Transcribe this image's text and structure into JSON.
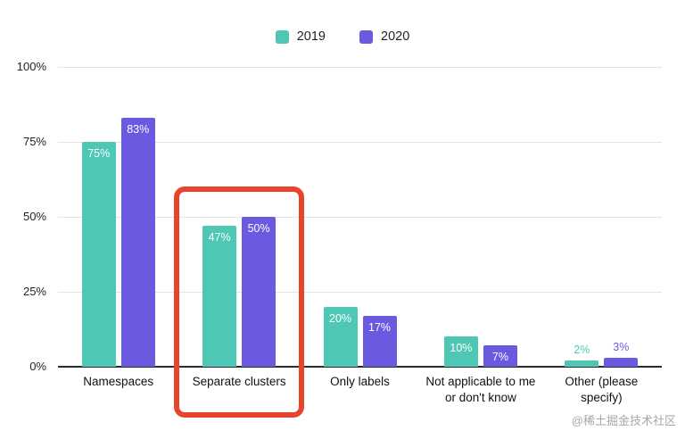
{
  "watermark": "@稀土掘金技术社区",
  "chart_data": {
    "type": "bar",
    "title": "",
    "categories": [
      "Namespaces",
      "Separate clusters",
      "Only labels",
      "Not applicable to me or don't know",
      "Other (please specify)"
    ],
    "series": [
      {
        "name": "2019",
        "color": "#4EC8B4",
        "values": [
          75,
          47,
          20,
          10,
          2
        ],
        "labels": [
          "75%",
          "47%",
          "20%",
          "10%",
          "2%"
        ]
      },
      {
        "name": "2020",
        "color": "#695AE0",
        "values": [
          83,
          50,
          17,
          7,
          3
        ],
        "labels": [
          "83%",
          "50%",
          "17%",
          "7%",
          "3%"
        ]
      }
    ],
    "yticks": [
      {
        "value": 0,
        "label": "0%"
      },
      {
        "value": 25,
        "label": "25%"
      },
      {
        "value": 50,
        "label": "50%"
      },
      {
        "value": 75,
        "label": "75%"
      },
      {
        "value": 100,
        "label": "100%"
      }
    ],
    "ylim": [
      0,
      100
    ],
    "grid": true,
    "legend_position": "top",
    "highlight": {
      "category": "Separate clusters",
      "color": "#E8432B"
    }
  }
}
